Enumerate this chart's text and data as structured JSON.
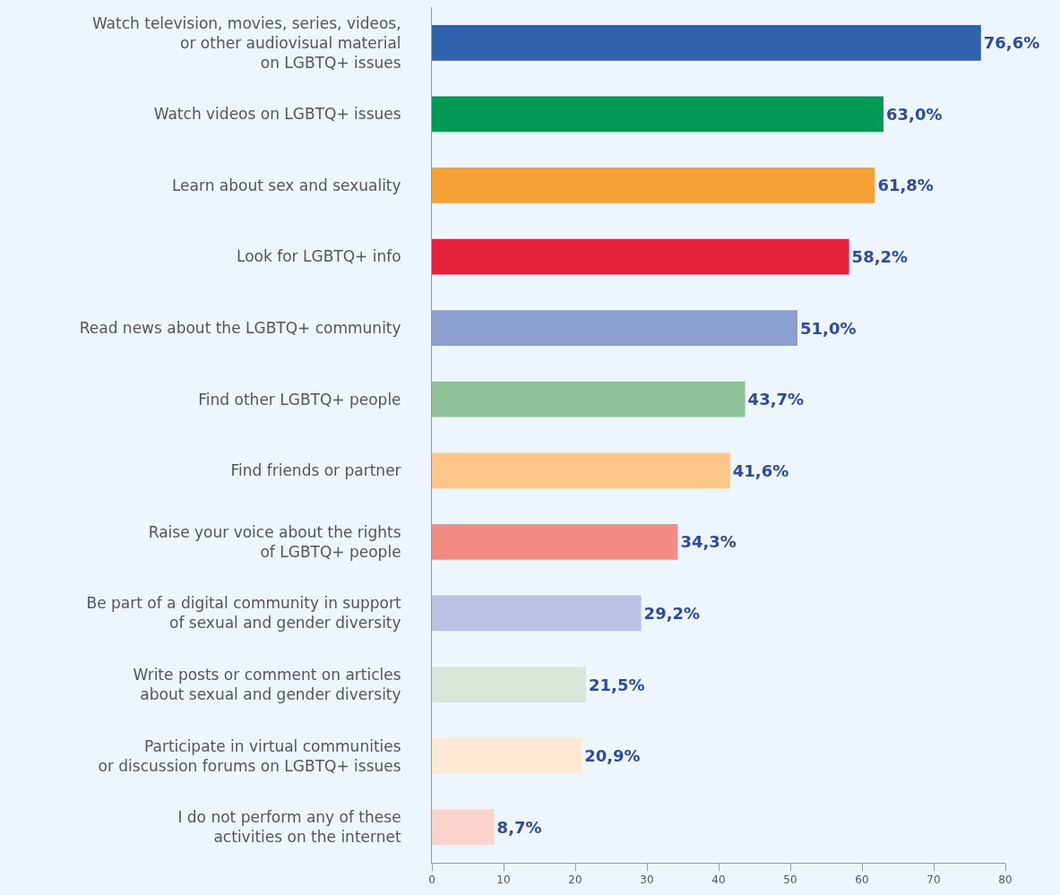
{
  "chart_data": {
    "type": "bar",
    "orientation": "horizontal",
    "categories": [
      "Watch television, movies, series, videos,\nor other audiovisual material\non LGBTQ+ issues",
      "Watch videos on LGBTQ+ issues",
      "Learn about sex and sexuality",
      "Look for LGBTQ+ info",
      "Read news about the LGBTQ+ community",
      "Find other LGBTQ+ people",
      "Find friends or partner",
      "Raise your voice about the rights\nof LGBTQ+ people",
      "Be part of a digital community in support\nof sexual and gender diversity",
      "Write posts or comment on articles\nabout sexual and gender diversity",
      "Participate in virtual communities\nor discussion forums on LGBTQ+ issues",
      "I do not perform any of these\nactivities on the internet"
    ],
    "values": [
      76.6,
      63.0,
      61.8,
      58.2,
      51.0,
      43.7,
      41.6,
      34.3,
      29.2,
      21.5,
      20.9,
      8.7
    ],
    "value_labels": [
      "76,6%",
      "63,0%",
      "61,8%",
      "58,2%",
      "51,0%",
      "43,7%",
      "41,6%",
      "34,3%",
      "29,2%",
      "21,5%",
      "20,9%",
      "8,7%"
    ],
    "colors": [
      "#3162ad",
      "#009a57",
      "#f4a034",
      "#e6213e",
      "#8b9fcf",
      "#8fc197",
      "#fdc78a",
      "#f28b84",
      "#bbc2e4",
      "#d8e6da",
      "#fde9d4",
      "#fad3cb"
    ],
    "xlim": [
      0,
      80
    ],
    "xticks": [
      0,
      10,
      20,
      30,
      40,
      50,
      60,
      70,
      80
    ],
    "grid": false,
    "legend": false
  }
}
